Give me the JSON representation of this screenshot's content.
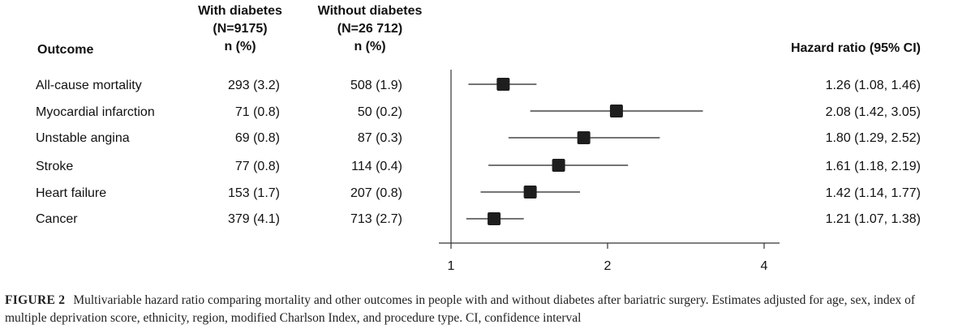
{
  "chart_data": {
    "type": "forest",
    "title": "",
    "headers": {
      "outcome": "Outcome",
      "with_diabetes": [
        "With diabetes",
        "(N=9175)",
        "n (%)"
      ],
      "without_diabetes": [
        "Without diabetes",
        "(N=26 712)",
        "n (%)"
      ],
      "hazard_ratio": "Hazard ratio (95% CI)"
    },
    "rows": [
      {
        "outcome": "All-cause mortality",
        "with": "293 (3.2)",
        "without": "508 (1.9)",
        "hr": 1.26,
        "lo": 1.08,
        "hi": 1.46,
        "label": "1.26 (1.08, 1.46)"
      },
      {
        "outcome": "Myocardial infarction",
        "with": "71 (0.8)",
        "without": "50 (0.2)",
        "hr": 2.08,
        "lo": 1.42,
        "hi": 3.05,
        "label": "2.08 (1.42, 3.05)"
      },
      {
        "outcome": "Unstable angina",
        "with": "69 (0.8)",
        "without": "87 (0.3)",
        "hr": 1.8,
        "lo": 1.29,
        "hi": 2.52,
        "label": "1.80 (1.29, 2.52)"
      },
      {
        "outcome": "Stroke",
        "with": "77 (0.8)",
        "without": "114 (0.4)",
        "hr": 1.61,
        "lo": 1.18,
        "hi": 2.19,
        "label": "1.61 (1.18, 2.19)"
      },
      {
        "outcome": "Heart failure",
        "with": "153 (1.7)",
        "without": "207 (0.8)",
        "hr": 1.42,
        "lo": 1.14,
        "hi": 1.77,
        "label": "1.42 (1.14, 1.77)"
      },
      {
        "outcome": "Cancer",
        "with": "379 (4.1)",
        "without": "713 (2.7)",
        "hr": 1.21,
        "lo": 1.07,
        "hi": 1.38,
        "label": "1.21 (1.07, 1.38)"
      }
    ],
    "x_axis": {
      "scale": "log",
      "ticks": [
        1,
        2,
        4
      ],
      "tick_labels": [
        "1",
        "2",
        "4"
      ],
      "range": [
        0.95,
        4.4
      ],
      "reference_line": 1
    }
  },
  "caption": {
    "label": "FIGURE 2",
    "text": "Multivariable hazard ratio comparing mortality and other outcomes in people with and without diabetes after bariatric surgery. Estimates adjusted for age, sex, index of multiple deprivation score, ethnicity, region, modified Charlson Index, and procedure type. CI, confidence interval"
  }
}
